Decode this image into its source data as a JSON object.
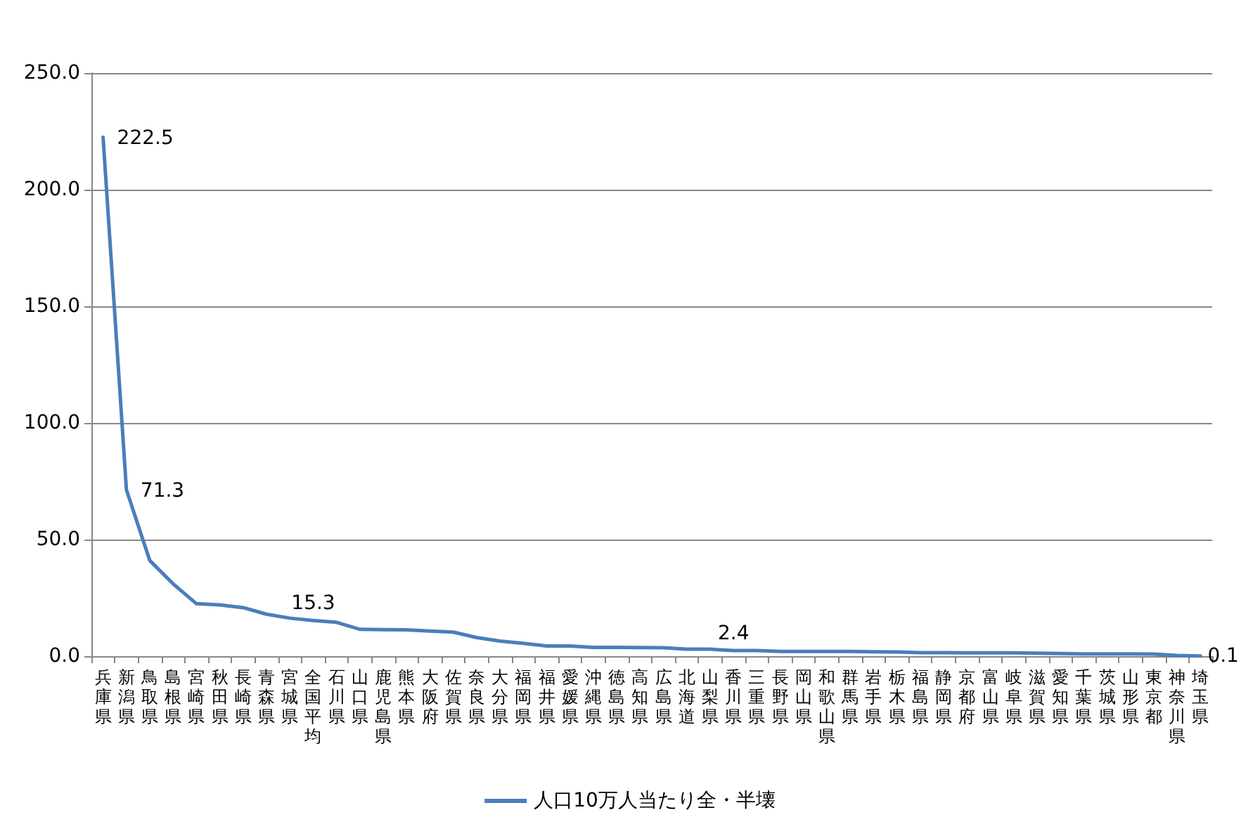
{
  "chart_data": {
    "type": "line",
    "categories": [
      "兵庫県",
      "新潟県",
      "鳥取県",
      "島根県",
      "宮崎県",
      "秋田県",
      "長崎県",
      "青森県",
      "宮城県",
      "全国平均",
      "石川県",
      "山口県",
      "鹿児島県",
      "熊本県",
      "大阪府",
      "佐賀県",
      "奈良県",
      "大分県",
      "福岡県",
      "福井県",
      "愛媛県",
      "沖縄県",
      "徳島県",
      "高知県",
      "広島県",
      "北海道",
      "山梨県",
      "香川県",
      "三重県",
      "長野県",
      "岡山県",
      "和歌山県",
      "群馬県",
      "岩手県",
      "栃木県",
      "福島県",
      "静岡県",
      "京都府",
      "富山県",
      "岐阜県",
      "滋賀県",
      "愛知県",
      "千葉県",
      "茨城県",
      "山形県",
      "東京都",
      "神奈川県",
      "埼玉県"
    ],
    "series": [
      {
        "name": "人口10万人当たり全・半壊",
        "color": "#4a7ebb",
        "values": [
          222.5,
          71.3,
          41,
          31,
          22.5,
          22,
          20.8,
          18,
          16.3,
          15.3,
          14.5,
          11.5,
          11.4,
          11.3,
          10.8,
          10.3,
          8,
          6.5,
          5.5,
          4.4,
          4.4,
          3.8,
          3.8,
          3.7,
          3.6,
          3.0,
          3.0,
          2.4,
          2.4,
          2.0,
          2.0,
          2.0,
          2.0,
          1.9,
          1.8,
          1.5,
          1.5,
          1.4,
          1.4,
          1.4,
          1.3,
          1.1,
          1.0,
          1.0,
          1.0,
          0.9,
          0.3,
          0.1
        ],
        "value_labels": [
          "222.5",
          "71.3",
          null,
          null,
          null,
          null,
          null,
          null,
          null,
          "15.3",
          null,
          null,
          null,
          null,
          null,
          null,
          null,
          null,
          null,
          null,
          null,
          null,
          null,
          null,
          null,
          null,
          null,
          "2.4",
          null,
          null,
          null,
          null,
          null,
          null,
          null,
          null,
          null,
          null,
          null,
          null,
          null,
          null,
          null,
          null,
          null,
          null,
          null,
          "0.1"
        ]
      }
    ],
    "ylim": [
      0,
      250
    ],
    "yticks": [
      {
        "value": 0,
        "label": "0.0"
      },
      {
        "value": 50,
        "label": "50.0"
      },
      {
        "value": 100,
        "label": "100.0"
      },
      {
        "value": 150,
        "label": "150.0"
      },
      {
        "value": 200,
        "label": "200.0"
      },
      {
        "value": 250,
        "label": "250.0"
      }
    ],
    "grid": "y",
    "legend": "bottom",
    "marker": "none",
    "line_style": "solid"
  }
}
